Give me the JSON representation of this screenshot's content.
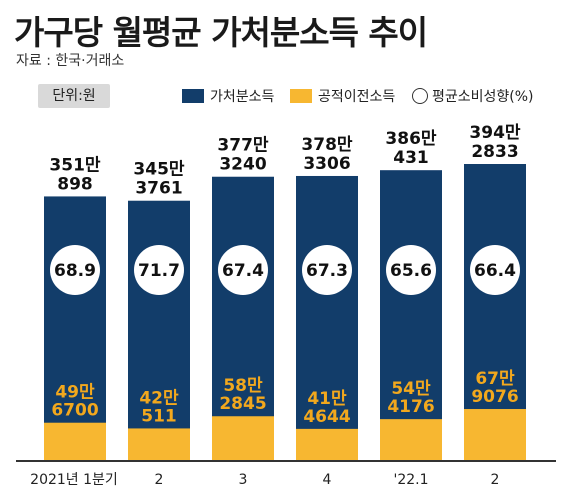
{
  "title": "가구당 월평균 가처분소득 추이",
  "source": "자료 : 한국·거래소",
  "unit": "단위:원",
  "colors": {
    "disposable": "#123d6a",
    "transfer": "#f7b731",
    "label_transfer": "#f2a81d"
  },
  "legend": {
    "disposable": "가처분소득",
    "transfer": "공적이전소득",
    "propensity": "평균소비성향(%)"
  },
  "chart_data": {
    "type": "bar",
    "title": "가구당 월평균 가처분소득 추이",
    "categories": [
      "2021년 1분기",
      "2",
      "3",
      "4",
      "'22.1",
      "2"
    ],
    "series": [
      {
        "name": "가처분소득",
        "values": [
          3510898,
          3453761,
          3773240,
          3783306,
          3860431,
          3942833
        ],
        "labels_top": [
          "351만",
          "345만",
          "377만",
          "378만",
          "386만",
          "394만"
        ],
        "labels_bottom": [
          "898",
          "3761",
          "3240",
          "3306",
          "431",
          "2833"
        ]
      },
      {
        "name": "공적이전소득",
        "values": [
          496700,
          420511,
          582845,
          414644,
          544176,
          679076
        ],
        "labels_top": [
          "49만",
          "42만",
          "58만",
          "41만",
          "54만",
          "67만"
        ],
        "labels_bottom": [
          "6700",
          "511",
          "2845",
          "4644",
          "4176",
          "9076"
        ]
      },
      {
        "name": "평균소비성향(%)",
        "values": [
          68.9,
          71.7,
          67.4,
          67.3,
          65.6,
          66.4
        ],
        "labels": [
          "68.9",
          "71.7",
          "67.4",
          "67.3",
          "65.6",
          "66.4"
        ]
      }
    ],
    "legend_position": "top-right",
    "grid": false
  }
}
